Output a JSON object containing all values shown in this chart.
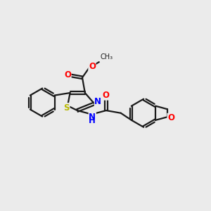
{
  "bg_color": "#ebebeb",
  "line_color": "#1a1a1a",
  "S_color": "#b8b800",
  "N_color": "#0000ff",
  "O_color": "#ff0000",
  "bond_lw": 1.6,
  "font_size": 8.5,
  "fig_size": [
    3.0,
    3.0
  ],
  "dpi": 100,
  "xlim": [
    0,
    10
  ],
  "ylim": [
    0,
    10
  ]
}
